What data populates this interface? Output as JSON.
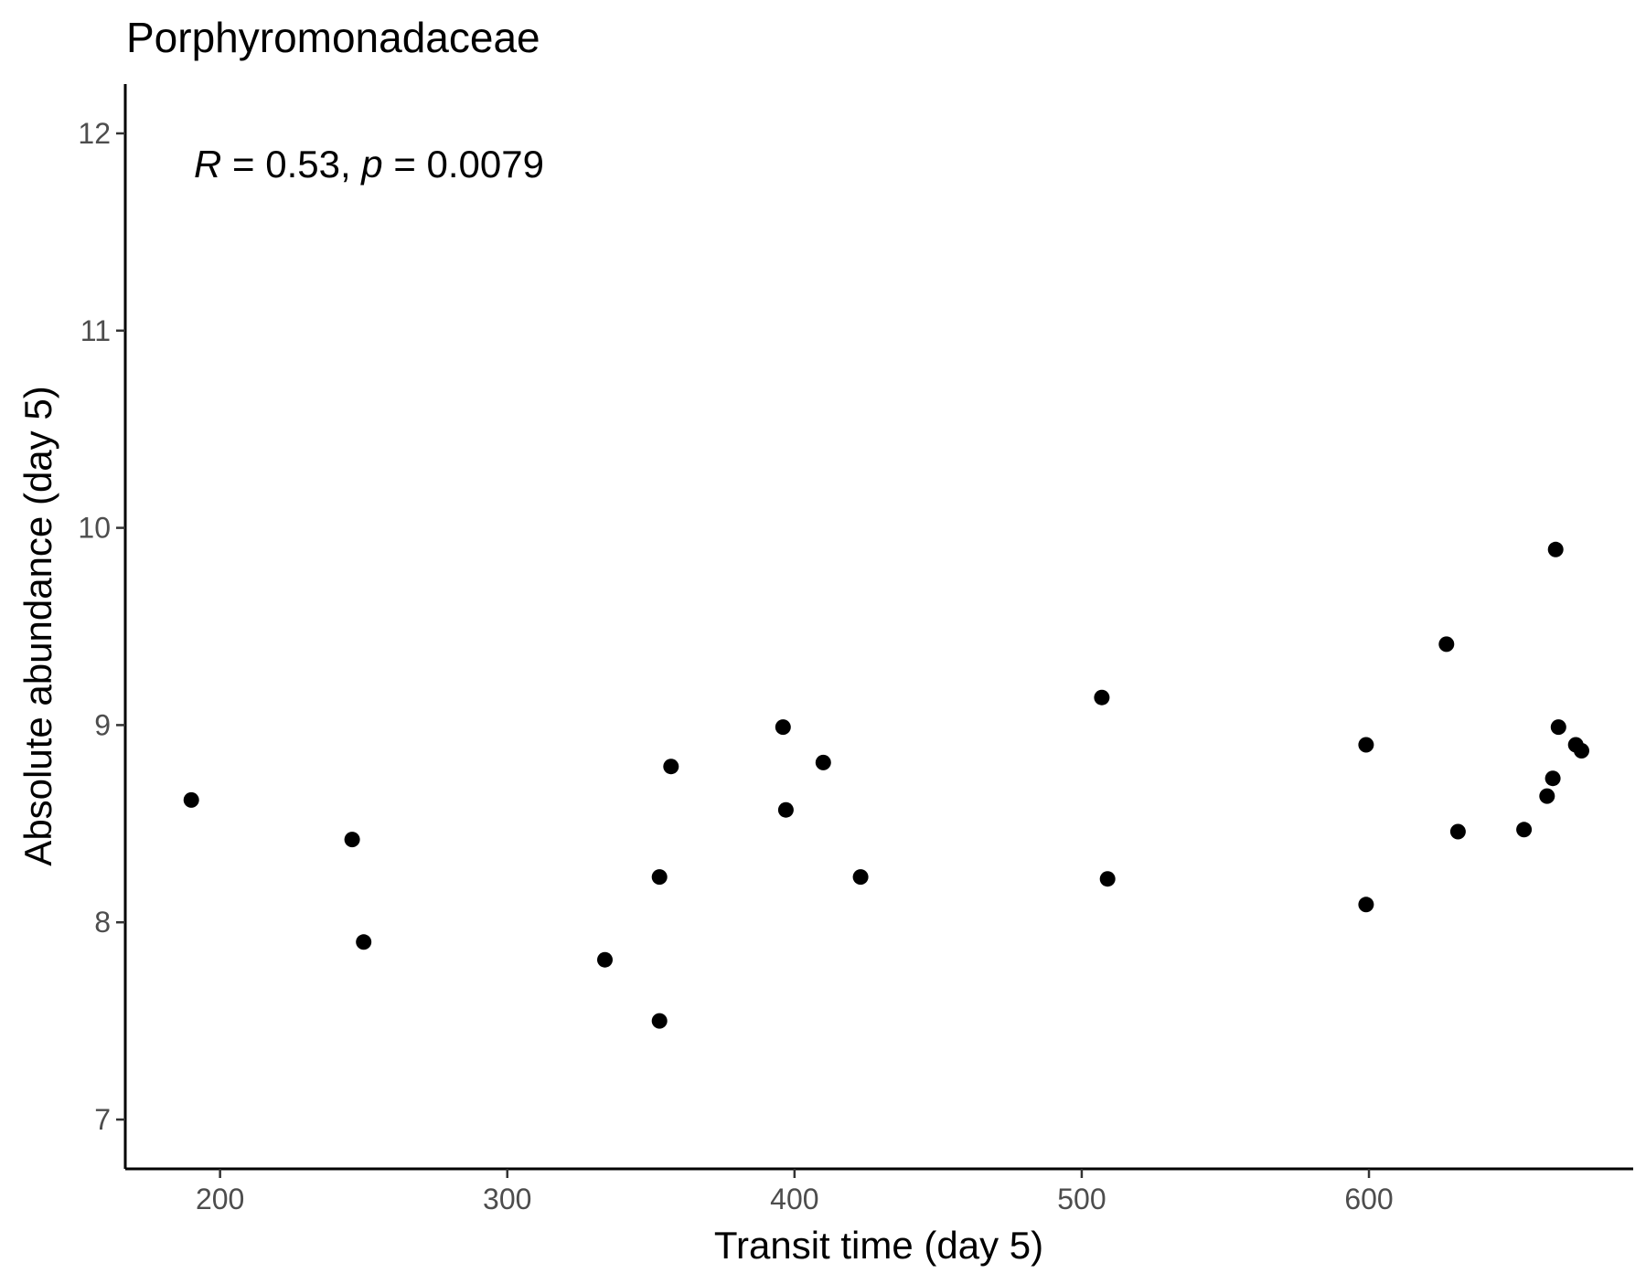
{
  "chart_data": {
    "type": "scatter",
    "title": "Porphyromonadaceae",
    "xlabel": "Transit time (day 5)",
    "ylabel": "Absolute abundance (day 5)",
    "xlim": [
      167,
      692
    ],
    "ylim": [
      6.75,
      12.25
    ],
    "xticks": [
      200,
      300,
      400,
      500,
      600
    ],
    "yticks": [
      7,
      8,
      9,
      10,
      11,
      12
    ],
    "grid": false,
    "annotation": {
      "r_label": "R",
      "r_text": " = 0.53, ",
      "p_label": "p",
      "p_text": " = 0.0079"
    },
    "point_color": "#000000",
    "points": [
      {
        "x": 190,
        "y": 8.62
      },
      {
        "x": 246,
        "y": 8.42
      },
      {
        "x": 250,
        "y": 7.9
      },
      {
        "x": 334,
        "y": 7.81
      },
      {
        "x": 353,
        "y": 8.23
      },
      {
        "x": 353,
        "y": 7.5
      },
      {
        "x": 357,
        "y": 8.79
      },
      {
        "x": 396,
        "y": 8.99
      },
      {
        "x": 397,
        "y": 8.57
      },
      {
        "x": 410,
        "y": 8.81
      },
      {
        "x": 423,
        "y": 8.23
      },
      {
        "x": 507,
        "y": 9.14
      },
      {
        "x": 509,
        "y": 8.22
      },
      {
        "x": 599,
        "y": 8.9
      },
      {
        "x": 599,
        "y": 8.09
      },
      {
        "x": 627,
        "y": 9.41
      },
      {
        "x": 631,
        "y": 8.46
      },
      {
        "x": 654,
        "y": 8.47
      },
      {
        "x": 662,
        "y": 8.64
      },
      {
        "x": 664,
        "y": 8.73
      },
      {
        "x": 665,
        "y": 9.89
      },
      {
        "x": 666,
        "y": 8.99
      },
      {
        "x": 672,
        "y": 8.9
      },
      {
        "x": 674,
        "y": 8.87
      }
    ]
  }
}
